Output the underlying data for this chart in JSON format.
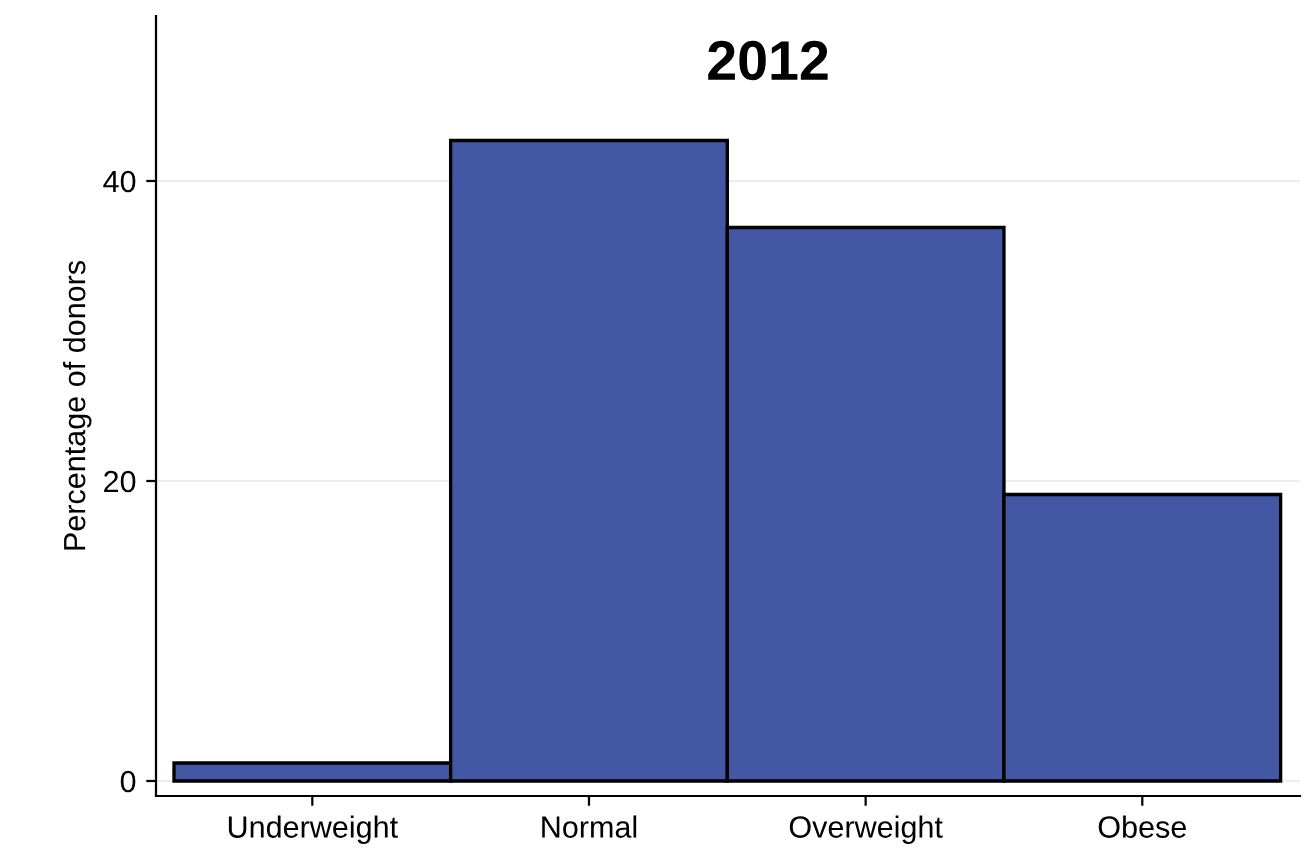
{
  "chart_data": {
    "type": "bar",
    "title": "2012",
    "ylabel": "Percentage of donors",
    "categories": [
      "Underweight",
      "Normal",
      "Overweight",
      "Obese"
    ],
    "values": [
      1.2,
      42.7,
      36.9,
      19.1
    ],
    "color": "#4457a5",
    "ylim": [
      -1,
      51
    ],
    "yticks": [
      0,
      20,
      40
    ],
    "grid": "y",
    "legend": false
  }
}
